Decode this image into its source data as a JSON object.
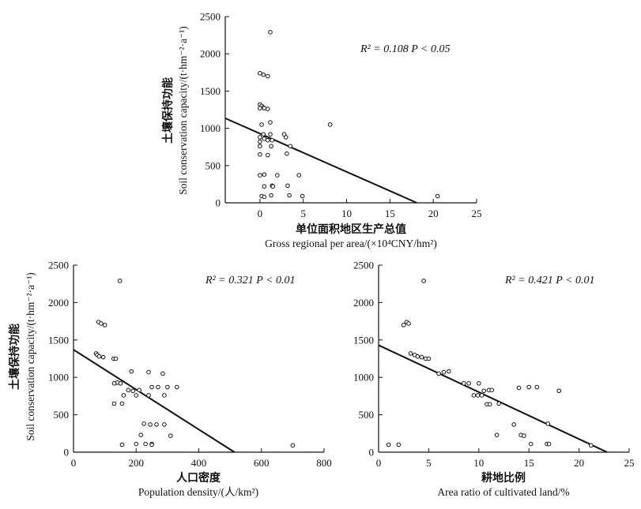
{
  "chart_data": [
    {
      "type": "scatter",
      "stat_text": "R² = 0.108   P < 0.05",
      "xlabel_cn": "单位面积地区生产总值",
      "xlabel_en": "Gross regional per area/(×10⁴CNY/hm²)",
      "ylabel_cn": "土壤保持功能",
      "ylabel_en": "Soil conservation capacity/(t·hm⁻²·a⁻¹)",
      "xlim": [
        -4,
        25
      ],
      "ylim": [
        0,
        2500
      ],
      "xticks": [
        0,
        5,
        10,
        15,
        20,
        25
      ],
      "yticks": [
        0,
        500,
        1000,
        1500,
        2000,
        2500
      ],
      "x": [
        1.2,
        0.0,
        0.4,
        0.9,
        0.0,
        0.2,
        0.4,
        0.0,
        0.5,
        0.9,
        1.2,
        8.1,
        0.2,
        0.4,
        1.2,
        2.8,
        3.0,
        0.0,
        0.5,
        0.9,
        1.4,
        0.0,
        1.3,
        0.0,
        3.5,
        3.1,
        0.0,
        0.9,
        4.5,
        0.0,
        0.5,
        1.4,
        3.2,
        0.5,
        1.5,
        2.0,
        3.4,
        1.3,
        0.2,
        0.5,
        4.9,
        20.5
      ],
      "y": [
        2290,
        1740,
        1720,
        1700,
        1320,
        1300,
        1280,
        1270,
        1270,
        1260,
        1080,
        1050,
        1050,
        920,
        920,
        920,
        880,
        880,
        860,
        840,
        840,
        820,
        760,
        760,
        760,
        660,
        650,
        640,
        370,
        370,
        380,
        230,
        230,
        220,
        220,
        370,
        100,
        100,
        90,
        80,
        90,
        90
      ],
      "fit": {
        "x": [
          -4,
          18.1
        ],
        "y": [
          1135,
          0
        ]
      }
    },
    {
      "type": "scatter",
      "stat_text": "R² = 0.321   P < 0.01",
      "xlabel_cn": "人口密度",
      "xlabel_en": "Population density/(人/km²)",
      "ylabel_cn": "土壤保持功能",
      "ylabel_en": "Soil conservation capacity/(t·hm⁻²·a⁻¹)",
      "xlim": [
        0,
        800
      ],
      "ylim": [
        0,
        2500
      ],
      "xticks": [
        0,
        200,
        400,
        600,
        800
      ],
      "yticks": [
        0,
        500,
        1000,
        1500,
        2000,
        2500
      ],
      "x": [
        148,
        80,
        88,
        100,
        72,
        76,
        82,
        95,
        128,
        135,
        185,
        240,
        285,
        140,
        130,
        150,
        175,
        190,
        210,
        250,
        270,
        300,
        330,
        160,
        200,
        130,
        155,
        240,
        290,
        225,
        245,
        265,
        290,
        310,
        215,
        230,
        250,
        200,
        155,
        250,
        700
      ],
      "y": [
        2290,
        1740,
        1720,
        1700,
        1320,
        1300,
        1280,
        1270,
        1250,
        1250,
        1080,
        1070,
        1050,
        930,
        920,
        920,
        830,
        820,
        830,
        870,
        870,
        870,
        870,
        760,
        760,
        650,
        650,
        760,
        760,
        380,
        370,
        370,
        370,
        220,
        230,
        110,
        110,
        110,
        100,
        100,
        90
      ],
      "fit": {
        "x": [
          0,
          514
        ],
        "y": [
          1370,
          0
        ]
      }
    },
    {
      "type": "scatter",
      "stat_text": "R² = 0.421   P < 0.01",
      "xlabel_cn": "耕地比例",
      "xlabel_en": "Area ratio of cultivated land/%",
      "ylabel_cn": "",
      "ylabel_en": "",
      "xlim": [
        0,
        25
      ],
      "ylim": [
        0,
        2500
      ],
      "xticks": [
        0,
        5,
        10,
        15,
        20,
        25
      ],
      "yticks": [
        0,
        500,
        1000,
        1500,
        2000,
        2500
      ],
      "x": [
        4.5,
        2.5,
        2.8,
        3.0,
        3.2,
        3.6,
        3.9,
        4.3,
        4.7,
        5.0,
        6.0,
        6.5,
        7.0,
        8.5,
        9.0,
        10.0,
        10.5,
        11.0,
        11.3,
        9.5,
        9.9,
        10.3,
        12.0,
        14.0,
        15.0,
        15.8,
        18.0,
        10.8,
        11.1,
        13.5,
        16.9,
        11.8,
        14.2,
        14.5,
        15.2,
        16.8,
        17.0,
        21.2,
        1.0,
        2.0
      ],
      "y": [
        2290,
        1700,
        1740,
        1720,
        1320,
        1300,
        1280,
        1270,
        1250,
        1250,
        1050,
        1070,
        1080,
        920,
        920,
        920,
        820,
        830,
        830,
        760,
        760,
        760,
        650,
        860,
        870,
        870,
        820,
        640,
        640,
        370,
        380,
        230,
        230,
        220,
        110,
        110,
        110,
        90,
        100,
        100
      ],
      "fit": {
        "x": [
          0,
          22.8
        ],
        "y": [
          1430,
          0
        ]
      }
    }
  ]
}
